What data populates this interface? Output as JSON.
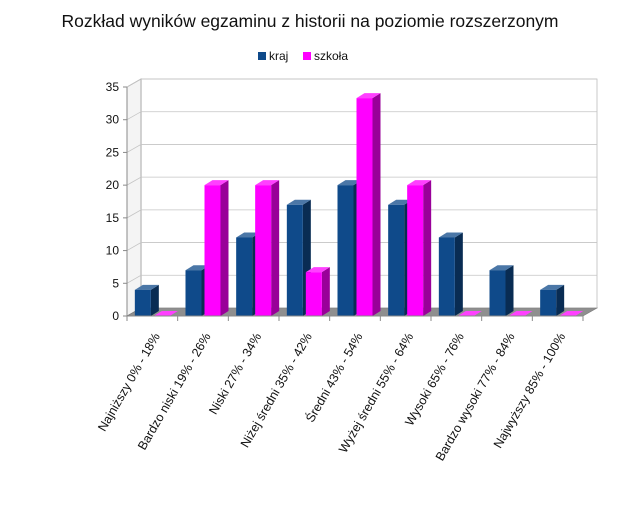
{
  "chart_data": {
    "type": "bar",
    "title": "Rozkład wyników egzaminu z historii na poziomie rozszerzonym",
    "categories": [
      "Najniższy 0% - 18%",
      "Bardzo niski 19% - 26%",
      "Niski 27% - 34%",
      "Niżej średni 35% - 42%",
      "Średni 43% - 54%",
      "Wyżej średni 55% - 64%",
      "Wysoki 65% - 76%",
      "Bardzo wysoki 77% - 84%",
      "Najwyższy 85% - 100%"
    ],
    "series": [
      {
        "name": "kraj",
        "color": "#0f4a8a",
        "values": [
          4,
          7,
          12,
          17,
          20,
          17,
          12,
          7,
          4
        ]
      },
      {
        "name": "szkoła",
        "color": "#ff00ff",
        "values": [
          0,
          20,
          20,
          6.7,
          33.3,
          20,
          0,
          0,
          0
        ]
      }
    ],
    "ylim": [
      0,
      35
    ],
    "yticks": [
      0,
      5,
      10,
      15,
      20,
      25,
      30,
      35
    ],
    "grid": true,
    "legend_position": "top-center",
    "style": "3d-column"
  }
}
